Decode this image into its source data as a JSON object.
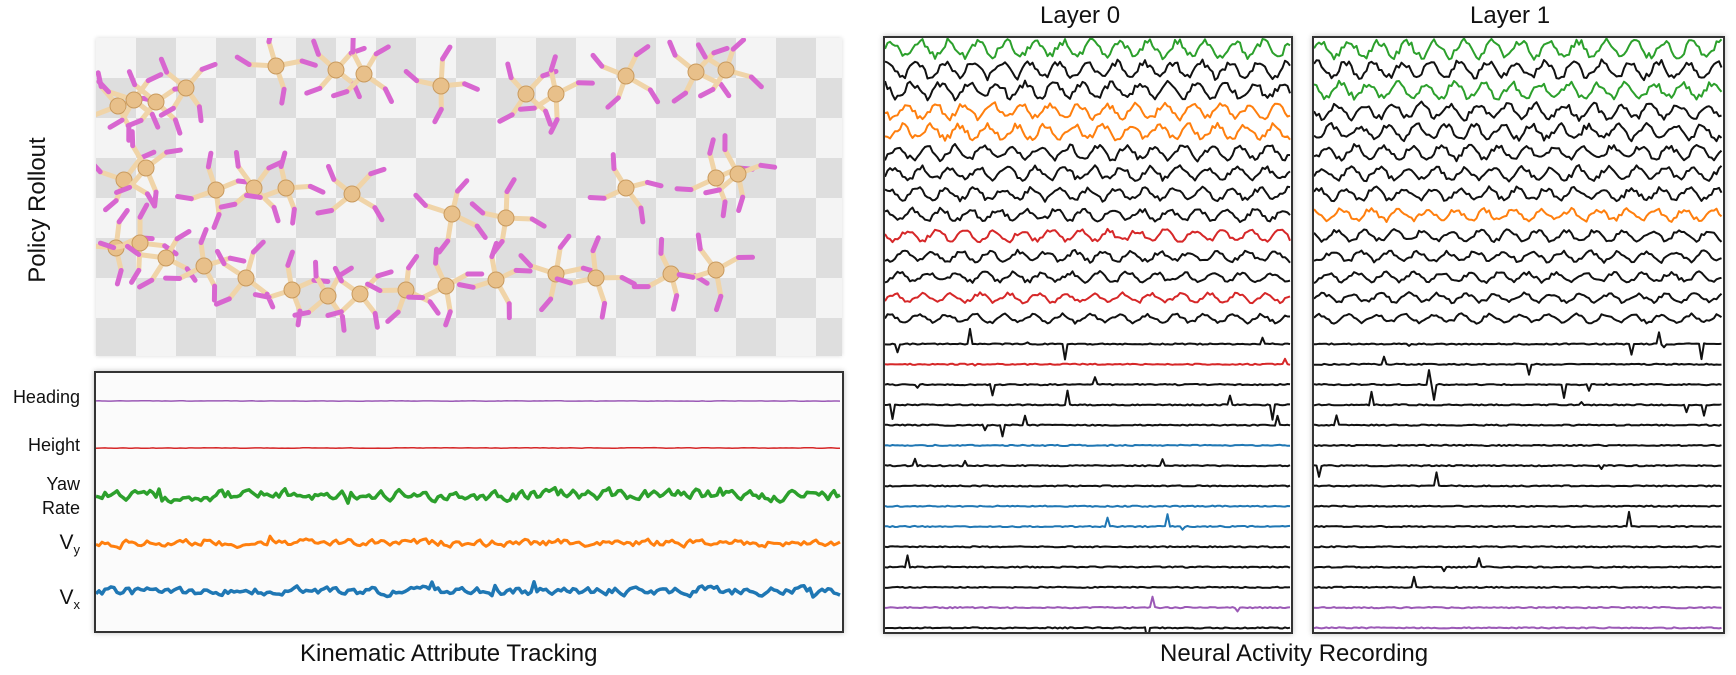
{
  "rollout": {
    "ylabel": "Policy Rollout"
  },
  "kinematics": {
    "caption": "Kinematic Attribute Tracking",
    "rows": [
      {
        "label": "Heading",
        "color": "#9b59b6"
      },
      {
        "label": "Height",
        "color": "#d62728"
      },
      {
        "label": "Yaw Rate",
        "line1": "Yaw",
        "line2": "Rate",
        "color": "#2ca02c"
      },
      {
        "label": "Vy",
        "base": "V",
        "sub": "y",
        "color": "#ff7f0e"
      },
      {
        "label": "Vx",
        "base": "V",
        "sub": "x",
        "color": "#1f77b4"
      }
    ]
  },
  "neural": {
    "caption": "Neural Activity Recording",
    "layer0": {
      "title": "Layer 0",
      "traces": [
        "green",
        "black",
        "black",
        "orange",
        "orange",
        "black",
        "black",
        "black",
        "black",
        "red",
        "black",
        "black",
        "red",
        "black",
        "black",
        "red",
        "black",
        "black",
        "black",
        "blue",
        "black",
        "black",
        "blue",
        "blue",
        "black",
        "black",
        "black",
        "purple",
        "black"
      ]
    },
    "layer1": {
      "title": "Layer 1",
      "traces": [
        "green",
        "black",
        "green",
        "black",
        "black",
        "black",
        "black",
        "black",
        "orange",
        "black",
        "black",
        "black",
        "black",
        "black",
        "black",
        "black",
        "black",
        "black",
        "black",
        "black",
        "black",
        "black",
        "black",
        "black",
        "black",
        "black",
        "black",
        "purple",
        "purple"
      ]
    }
  },
  "colors": {
    "green": "#2ca02c",
    "orange": "#ff7f0e",
    "red": "#d62728",
    "blue": "#1f77b4",
    "purple": "#9b59b6",
    "black": "#111111",
    "limb": "#d866d0",
    "body": "#f0d4a8"
  }
}
